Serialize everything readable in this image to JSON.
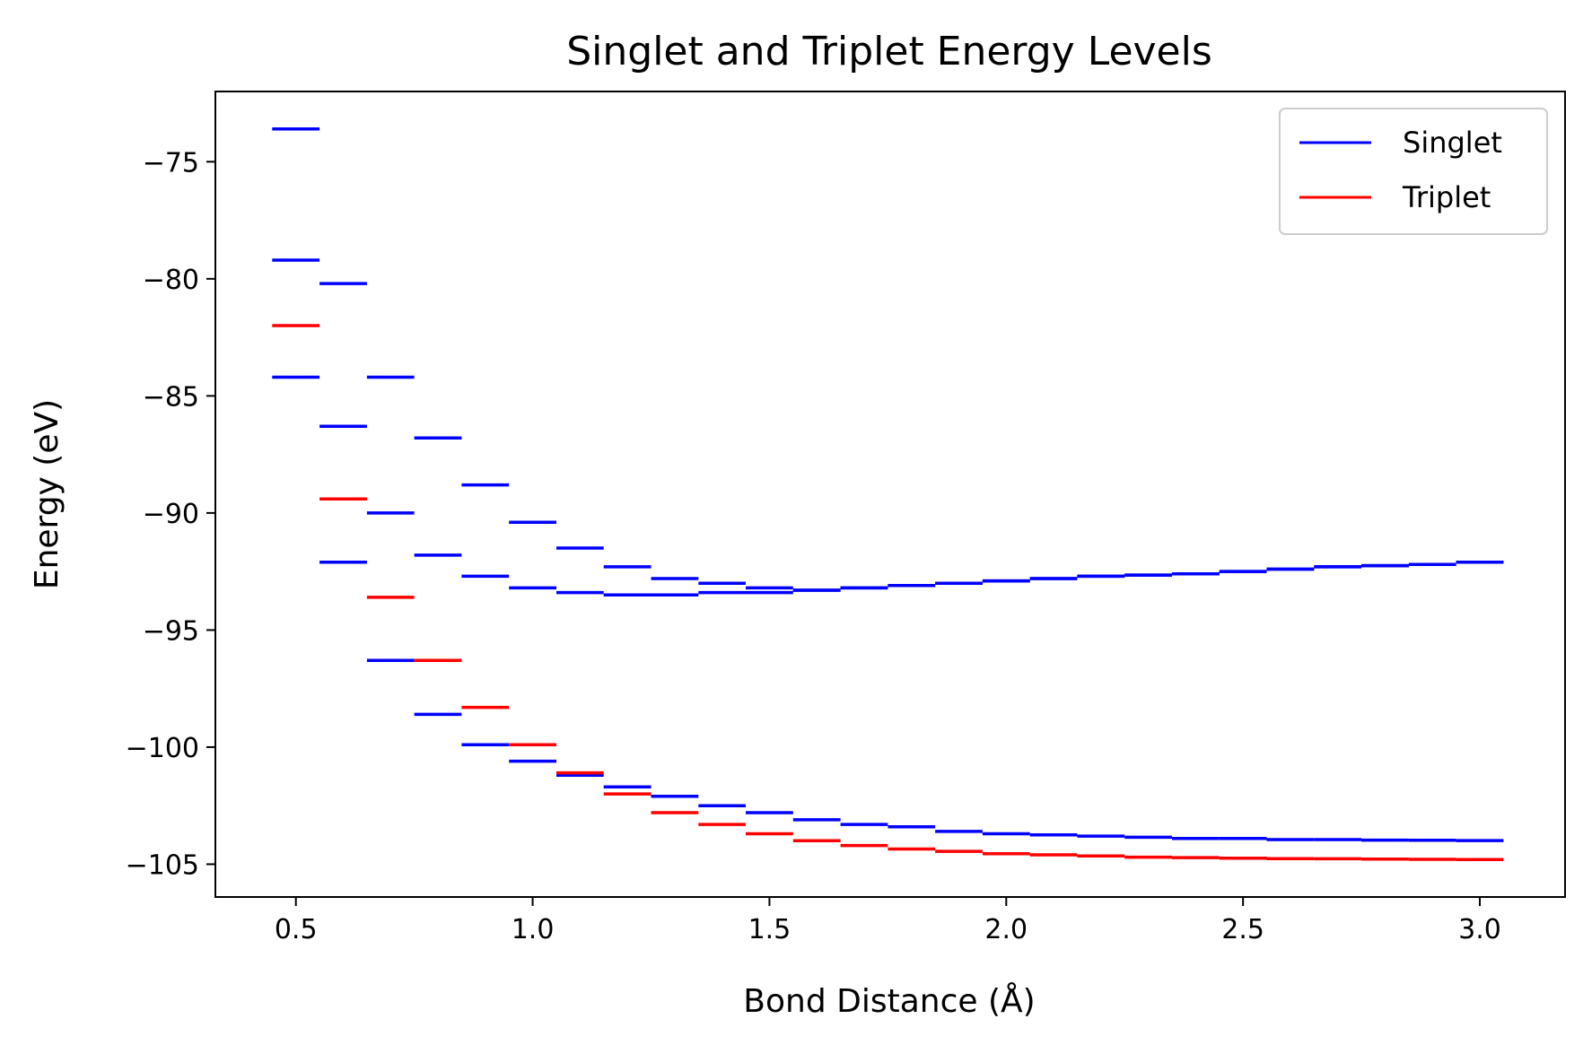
{
  "chart_data": {
    "type": "line",
    "title": "Singlet and Triplet Energy Levels",
    "xlabel": "Bond Distance (Å)",
    "ylabel": "Energy (eV)",
    "xlim": [
      0.33,
      3.18
    ],
    "ylim": [
      -106.4,
      -72.0
    ],
    "xticks": [
      0.5,
      1.0,
      1.5,
      2.0,
      2.5,
      3.0
    ],
    "xtick_labels": [
      "0.5",
      "1.0",
      "1.5",
      "2.0",
      "2.5",
      "3.0"
    ],
    "yticks": [
      -75,
      -80,
      -85,
      -90,
      -95,
      -100,
      -105
    ],
    "ytick_labels": [
      "−75",
      "−80",
      "−85",
      "−90",
      "−95",
      "−100",
      "−105"
    ],
    "segment_width": 0.1,
    "grid": false,
    "legend_position": "upper right",
    "x": [
      0.5,
      0.6,
      0.7,
      0.8,
      0.9,
      1.0,
      1.1,
      1.2,
      1.3,
      1.4,
      1.5,
      1.6,
      1.7,
      1.8,
      1.9,
      2.0,
      2.1,
      2.2,
      2.3,
      2.4,
      2.5,
      2.6,
      2.7,
      2.8,
      2.9,
      3.0
    ],
    "series": [
      {
        "name": "Singlet",
        "color": "#0000ff",
        "levels": [
          [
            -84.2,
            -79.2,
            -73.6
          ],
          [
            -92.1,
            -86.3,
            -80.2
          ],
          [
            -96.3,
            -90.0,
            -84.2
          ],
          [
            -98.6,
            -91.8,
            -86.8
          ],
          [
            -99.9,
            -92.7,
            -88.8
          ],
          [
            -100.6,
            -93.2,
            -90.4
          ],
          [
            -101.2,
            -93.4,
            -91.5
          ],
          [
            -101.7,
            -93.5,
            -92.3
          ],
          [
            -102.1,
            -93.5,
            -92.8
          ],
          [
            -102.5,
            -93.4,
            -93.0
          ],
          [
            -102.8,
            -93.4,
            -93.2
          ],
          [
            -103.1,
            -93.3,
            -93.3
          ],
          [
            -103.3,
            -93.2,
            -93.2
          ],
          [
            -103.4,
            -93.1,
            -93.1
          ],
          [
            -103.6,
            -93.0,
            -93.0
          ],
          [
            -103.7,
            -92.9,
            -92.9
          ],
          [
            -103.75,
            -92.8,
            -92.8
          ],
          [
            -103.8,
            -92.7,
            -92.7
          ],
          [
            -103.85,
            -92.65,
            -92.65
          ],
          [
            -103.9,
            -92.6,
            -92.6
          ],
          [
            -103.9,
            -92.5,
            -92.5
          ],
          [
            -103.95,
            -92.4,
            -92.4
          ],
          [
            -103.95,
            -92.3,
            -92.3
          ],
          [
            -103.97,
            -92.25,
            -92.25
          ],
          [
            -103.98,
            -92.2,
            -92.2
          ],
          [
            -103.99,
            -92.1,
            -92.1
          ]
        ]
      },
      {
        "name": "Triplet",
        "color": "#ff0000",
        "values": [
          -82.0,
          -89.4,
          -93.6,
          -96.3,
          -98.3,
          -99.9,
          -101.1,
          -102.0,
          -102.8,
          -103.3,
          -103.7,
          -104.0,
          -104.2,
          -104.35,
          -104.45,
          -104.55,
          -104.6,
          -104.65,
          -104.7,
          -104.72,
          -104.74,
          -104.76,
          -104.77,
          -104.78,
          -104.79,
          -104.8
        ]
      }
    ]
  }
}
